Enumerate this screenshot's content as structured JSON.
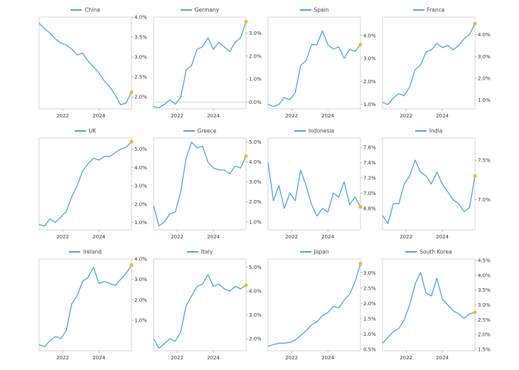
{
  "colors": {
    "line": "#4c9fe0",
    "marker": "#f5b731",
    "frame": "#cccccc",
    "text": "#333333"
  },
  "chart_data": [
    {
      "type": "line",
      "title": "China",
      "legend": "China",
      "ylim": [
        1.7,
        4.0
      ],
      "yticks": [
        2.0,
        2.5,
        3.0,
        3.5,
        4.0
      ],
      "ytick_labels": [
        "2.0%",
        "2.5%",
        "3.0%",
        "3.5%",
        "4.0%"
      ],
      "xlim": [
        2020.7,
        2025.8
      ],
      "xticks": [
        2022,
        2024
      ],
      "xtick_labels": [
        "2022",
        "2024"
      ],
      "zero_line": false,
      "series": [
        {
          "name": "China",
          "x": [
            2020.7,
            2021.0,
            2021.3,
            2021.6,
            2021.9,
            2022.2,
            2022.5,
            2022.8,
            2023.1,
            2023.4,
            2023.7,
            2024.0,
            2024.3,
            2024.6,
            2024.9,
            2025.2,
            2025.5,
            2025.8
          ],
          "y": [
            3.85,
            3.7,
            3.6,
            3.45,
            3.35,
            3.3,
            3.2,
            3.05,
            3.1,
            2.9,
            2.75,
            2.6,
            2.4,
            2.25,
            2.05,
            1.8,
            1.85,
            2.12
          ]
        }
      ]
    },
    {
      "type": "line",
      "title": "Germany",
      "legend": "Germany",
      "ylim": [
        -0.3,
        3.7
      ],
      "yticks": [
        0.0,
        1.0,
        2.0,
        3.0
      ],
      "ytick_labels": [
        "0.0%",
        "1.0%",
        "2.0%",
        "3.0%"
      ],
      "xlim": [
        2020.7,
        2025.8
      ],
      "xticks": [
        2022,
        2024
      ],
      "xtick_labels": [
        "2022",
        "2024"
      ],
      "zero_line": true,
      "series": [
        {
          "name": "Germany",
          "x": [
            2020.7,
            2021.0,
            2021.3,
            2021.6,
            2021.9,
            2022.2,
            2022.5,
            2022.8,
            2023.1,
            2023.4,
            2023.7,
            2024.0,
            2024.3,
            2024.6,
            2024.9,
            2025.2,
            2025.5,
            2025.8
          ],
          "y": [
            -0.2,
            -0.25,
            -0.1,
            0.1,
            -0.1,
            0.2,
            1.4,
            1.6,
            2.3,
            2.4,
            2.8,
            2.3,
            2.6,
            2.4,
            2.2,
            2.6,
            2.8,
            3.5
          ]
        }
      ]
    },
    {
      "type": "line",
      "title": "Spain",
      "legend": "Spain",
      "ylim": [
        0.8,
        4.8
      ],
      "yticks": [
        1.0,
        2.0,
        3.0,
        4.0
      ],
      "ytick_labels": [
        "1.0%",
        "2.0%",
        "3.0%",
        "4.0%"
      ],
      "xlim": [
        2020.7,
        2025.8
      ],
      "xticks": [
        2022,
        2024
      ],
      "xtick_labels": [
        "2022",
        "2024"
      ],
      "zero_line": false,
      "series": [
        {
          "name": "Spain",
          "x": [
            2020.7,
            2021.0,
            2021.3,
            2021.6,
            2021.9,
            2022.2,
            2022.5,
            2022.8,
            2023.1,
            2023.4,
            2023.7,
            2024.0,
            2024.3,
            2024.6,
            2024.9,
            2025.2,
            2025.5,
            2025.8
          ],
          "y": [
            1.0,
            0.9,
            1.0,
            1.3,
            1.2,
            1.5,
            2.7,
            2.9,
            3.6,
            3.6,
            4.2,
            3.6,
            3.4,
            3.5,
            3.0,
            3.4,
            3.3,
            3.6
          ]
        }
      ]
    },
    {
      "type": "line",
      "title": "France",
      "legend": "France",
      "ylim": [
        0.6,
        4.8
      ],
      "yticks": [
        1.0,
        2.0,
        3.0,
        4.0
      ],
      "ytick_labels": [
        "1.0%",
        "2.0%",
        "3.0%",
        "4.0%"
      ],
      "xlim": [
        2020.7,
        2025.8
      ],
      "xticks": [
        2022,
        2024
      ],
      "xtick_labels": [
        "2022",
        "2024"
      ],
      "zero_line": false,
      "series": [
        {
          "name": "France",
          "x": [
            2020.7,
            2021.0,
            2021.3,
            2021.6,
            2021.9,
            2022.2,
            2022.5,
            2022.8,
            2023.1,
            2023.4,
            2023.7,
            2024.0,
            2024.3,
            2024.6,
            2024.9,
            2025.2,
            2025.5,
            2025.8
          ],
          "y": [
            0.9,
            0.8,
            1.1,
            1.3,
            1.2,
            1.6,
            2.4,
            2.6,
            3.2,
            3.3,
            3.6,
            3.4,
            3.5,
            3.3,
            3.5,
            3.8,
            4.0,
            4.5
          ]
        }
      ]
    },
    {
      "type": "line",
      "title": "UK",
      "legend": "UK",
      "ylim": [
        0.6,
        5.6
      ],
      "yticks": [
        1.0,
        2.0,
        3.0,
        4.0,
        5.0
      ],
      "ytick_labels": [
        "1.0%",
        "2.0%",
        "3.0%",
        "4.0%",
        "5.0%"
      ],
      "xlim": [
        2020.7,
        2025.8
      ],
      "xticks": [
        2022,
        2024
      ],
      "xtick_labels": [
        "2022",
        "2024"
      ],
      "zero_line": false,
      "series": [
        {
          "name": "UK",
          "x": [
            2020.7,
            2021.0,
            2021.3,
            2021.6,
            2021.9,
            2022.2,
            2022.5,
            2022.8,
            2023.1,
            2023.4,
            2023.7,
            2024.0,
            2024.3,
            2024.6,
            2024.9,
            2025.2,
            2025.5,
            2025.8
          ],
          "y": [
            0.9,
            0.8,
            1.2,
            1.0,
            1.3,
            1.6,
            2.4,
            3.0,
            3.8,
            4.2,
            4.5,
            4.4,
            4.6,
            4.6,
            4.8,
            5.0,
            5.1,
            5.4
          ]
        }
      ]
    },
    {
      "type": "line",
      "title": "Greece",
      "legend": "Greece",
      "ylim": [
        0.6,
        5.2
      ],
      "yticks": [
        1.0,
        2.0,
        3.0,
        4.0,
        5.0
      ],
      "ytick_labels": [
        "1.0%",
        "2.0%",
        "3.0%",
        "4.0%",
        "5.0%"
      ],
      "xlim": [
        2020.7,
        2025.8
      ],
      "xticks": [
        2022,
        2024
      ],
      "xtick_labels": [
        "2022",
        "2024"
      ],
      "zero_line": false,
      "series": [
        {
          "name": "Greece",
          "x": [
            2020.7,
            2021.0,
            2021.3,
            2021.6,
            2021.9,
            2022.2,
            2022.5,
            2022.8,
            2023.1,
            2023.4,
            2023.7,
            2024.0,
            2024.3,
            2024.6,
            2024.9,
            2025.2,
            2025.5,
            2025.8
          ],
          "y": [
            1.8,
            0.8,
            1.0,
            1.4,
            1.5,
            2.5,
            4.2,
            5.0,
            4.7,
            4.8,
            4.0,
            3.7,
            3.6,
            3.6,
            3.4,
            3.8,
            3.7,
            4.3
          ]
        }
      ]
    },
    {
      "type": "line",
      "title": "Indonesia",
      "legend": "Indonesia",
      "ylim": [
        6.52,
        7.72
      ],
      "yticks": [
        6.8,
        7.0,
        7.2,
        7.4,
        7.6
      ],
      "ytick_labels": [
        "6.8%",
        "7.0%",
        "7.2%",
        "7.4%",
        "7.6%"
      ],
      "xlim": [
        2020.7,
        2025.8
      ],
      "xticks": [
        2022,
        2024
      ],
      "xtick_labels": [
        "2022",
        "2024"
      ],
      "zero_line": false,
      "series": [
        {
          "name": "Indonesia",
          "x": [
            2020.7,
            2021.0,
            2021.3,
            2021.6,
            2021.9,
            2022.2,
            2022.5,
            2022.8,
            2023.1,
            2023.4,
            2023.7,
            2024.0,
            2024.3,
            2024.6,
            2024.9,
            2025.2,
            2025.5,
            2025.8
          ],
          "y": [
            7.4,
            6.9,
            7.1,
            6.8,
            7.0,
            6.9,
            7.3,
            7.1,
            6.85,
            6.7,
            6.8,
            6.75,
            7.0,
            6.95,
            7.15,
            6.85,
            6.95,
            6.82
          ]
        }
      ]
    },
    {
      "type": "line",
      "title": "India",
      "legend": "India",
      "ylim": [
        6.62,
        7.78
      ],
      "yticks": [
        7.0,
        7.5
      ],
      "ytick_labels": [
        "7.0%",
        "7.5%"
      ],
      "xlim": [
        2020.7,
        2025.8
      ],
      "xticks": [
        2022,
        2024
      ],
      "xtick_labels": [
        "2022",
        "2024"
      ],
      "zero_line": false,
      "series": [
        {
          "name": "India",
          "x": [
            2020.7,
            2021.0,
            2021.3,
            2021.6,
            2021.9,
            2022.2,
            2022.5,
            2022.8,
            2023.1,
            2023.4,
            2023.7,
            2024.0,
            2024.3,
            2024.6,
            2024.9,
            2025.2,
            2025.5,
            2025.8
          ],
          "y": [
            6.8,
            6.7,
            6.95,
            6.95,
            7.2,
            7.3,
            7.5,
            7.35,
            7.3,
            7.2,
            7.35,
            7.2,
            7.1,
            7.0,
            6.95,
            6.85,
            6.9,
            7.3
          ]
        }
      ]
    },
    {
      "type": "line",
      "title": "Ireland",
      "legend": "Ireland",
      "ylim": [
        -0.5,
        4.0
      ],
      "yticks": [
        1.0,
        2.0,
        3.0,
        4.0
      ],
      "ytick_labels": [
        "1.0%",
        "2.0%",
        "3.0%",
        "4.0%"
      ],
      "xlim": [
        2020.7,
        2025.8
      ],
      "xticks": [
        2022,
        2024
      ],
      "xtick_labels": [
        "2022",
        "2024"
      ],
      "zero_line": false,
      "series": [
        {
          "name": "Ireland",
          "x": [
            2020.7,
            2021.0,
            2021.3,
            2021.6,
            2021.9,
            2022.2,
            2022.5,
            2022.8,
            2023.1,
            2023.4,
            2023.7,
            2024.0,
            2024.3,
            2024.6,
            2024.9,
            2025.2,
            2025.5,
            2025.8
          ],
          "y": [
            -0.2,
            -0.3,
            0.0,
            0.2,
            0.1,
            0.5,
            1.8,
            2.2,
            2.9,
            3.1,
            3.6,
            2.8,
            2.9,
            2.8,
            2.7,
            3.0,
            3.3,
            3.7
          ]
        }
      ]
    },
    {
      "type": "line",
      "title": "Italy",
      "legend": "Italy",
      "ylim": [
        1.5,
        5.35
      ],
      "yticks": [
        2.0,
        3.0,
        4.0,
        5.0
      ],
      "ytick_labels": [
        "2.0%",
        "3.0%",
        "4.0%",
        "5.0%"
      ],
      "xlim": [
        2020.7,
        2025.8
      ],
      "xticks": [
        2022,
        2024
      ],
      "xtick_labels": [
        "2022",
        "2024"
      ],
      "zero_line": false,
      "series": [
        {
          "name": "Italy",
          "x": [
            2020.7,
            2021.0,
            2021.3,
            2021.6,
            2021.9,
            2022.2,
            2022.5,
            2022.8,
            2023.1,
            2023.4,
            2023.7,
            2024.0,
            2024.3,
            2024.6,
            2024.9,
            2025.2,
            2025.5,
            2025.8
          ],
          "y": [
            2.0,
            1.6,
            1.8,
            2.0,
            1.9,
            2.3,
            3.4,
            3.8,
            4.2,
            4.3,
            4.7,
            4.2,
            4.3,
            4.1,
            4.0,
            4.2,
            4.1,
            4.25
          ]
        }
      ]
    },
    {
      "type": "line",
      "title": "Japan",
      "legend": "Japan",
      "ylim": [
        0.45,
        3.45
      ],
      "yticks": [
        0.5,
        1.0,
        1.5,
        2.0,
        2.5,
        3.0
      ],
      "ytick_labels": [
        "0.5%",
        "1.0%",
        "1.5%",
        "2.0%",
        "2.5%",
        "3.0%"
      ],
      "xlim": [
        2020.7,
        2025.8
      ],
      "xticks": [
        2022,
        2024
      ],
      "xtick_labels": [
        "2022",
        "2024"
      ],
      "zero_line": false,
      "series": [
        {
          "name": "Japan",
          "x": [
            2020.7,
            2021.0,
            2021.3,
            2021.6,
            2021.9,
            2022.2,
            2022.5,
            2022.8,
            2023.1,
            2023.4,
            2023.7,
            2024.0,
            2024.3,
            2024.6,
            2024.9,
            2025.2,
            2025.5,
            2025.8
          ],
          "y": [
            0.6,
            0.65,
            0.7,
            0.7,
            0.72,
            0.8,
            0.95,
            1.1,
            1.3,
            1.4,
            1.6,
            1.7,
            1.9,
            1.85,
            2.1,
            2.3,
            2.7,
            3.3
          ]
        }
      ]
    },
    {
      "type": "line",
      "title": "South Korea",
      "legend": "South Korea",
      "ylim": [
        1.45,
        4.55
      ],
      "yticks": [
        1.5,
        2.0,
        2.5,
        3.0,
        3.5,
        4.0,
        4.5
      ],
      "ytick_labels": [
        "1.5%",
        "2.0%",
        "2.5%",
        "3.0%",
        "3.5%",
        "4.0%",
        "4.5%"
      ],
      "xlim": [
        2020.7,
        2025.8
      ],
      "xticks": [
        2022,
        2024
      ],
      "xtick_labels": [
        "2022",
        "2024"
      ],
      "zero_line": false,
      "series": [
        {
          "name": "South Korea",
          "x": [
            2020.7,
            2021.0,
            2021.3,
            2021.6,
            2021.9,
            2022.2,
            2022.5,
            2022.8,
            2023.1,
            2023.4,
            2023.7,
            2024.0,
            2024.3,
            2024.6,
            2024.9,
            2025.2,
            2025.5,
            2025.8
          ],
          "y": [
            1.7,
            1.9,
            2.1,
            2.2,
            2.5,
            3.0,
            3.7,
            4.1,
            3.4,
            3.3,
            3.9,
            3.2,
            3.0,
            2.8,
            2.7,
            2.55,
            2.7,
            2.75
          ]
        }
      ]
    }
  ]
}
